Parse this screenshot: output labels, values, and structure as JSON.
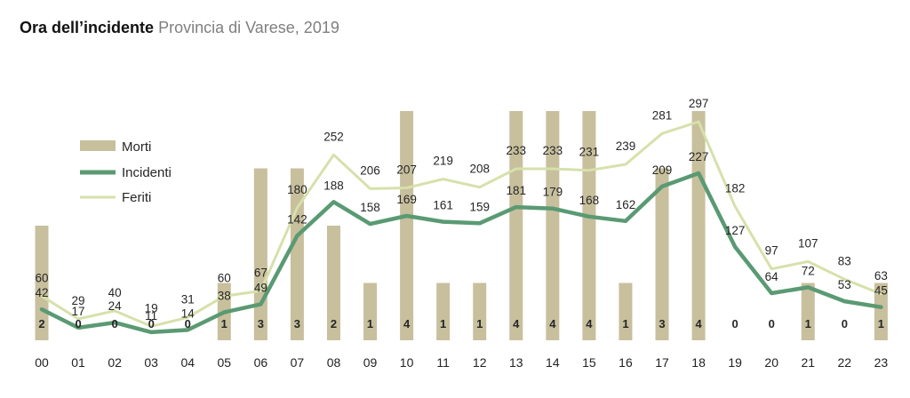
{
  "title": {
    "main": "Ora dell’incidente",
    "sub": "Provincia di Varese, 2019"
  },
  "colors": {
    "morti": "#c8bf9d",
    "incidenti": "#5a9a73",
    "feriti": "#d6e1ab"
  },
  "chart_data": {
    "type": "bar",
    "categories": [
      "00",
      "01",
      "02",
      "03",
      "04",
      "05",
      "06",
      "07",
      "08",
      "09",
      "10",
      "11",
      "12",
      "13",
      "14",
      "15",
      "16",
      "17",
      "18",
      "19",
      "20",
      "21",
      "22",
      "23"
    ],
    "series": [
      {
        "name": "Morti",
        "type": "bar",
        "values": [
          2,
          0,
          0,
          0,
          0,
          1,
          3,
          3,
          2,
          1,
          4,
          1,
          1,
          4,
          4,
          4,
          1,
          3,
          4,
          0,
          0,
          1,
          0,
          1
        ]
      },
      {
        "name": "Incidenti",
        "type": "line",
        "values": [
          42,
          17,
          24,
          11,
          14,
          38,
          49,
          142,
          188,
          158,
          169,
          161,
          159,
          181,
          179,
          168,
          162,
          209,
          227,
          127,
          64,
          72,
          53,
          45
        ]
      },
      {
        "name": "Feriti",
        "type": "line",
        "values": [
          60,
          29,
          40,
          19,
          31,
          60,
          67,
          180,
          252,
          206,
          207,
          219,
          208,
          233,
          233,
          231,
          239,
          281,
          297,
          182,
          97,
          107,
          83,
          63
        ]
      }
    ],
    "legend_position": "upper-left",
    "grid": false
  }
}
